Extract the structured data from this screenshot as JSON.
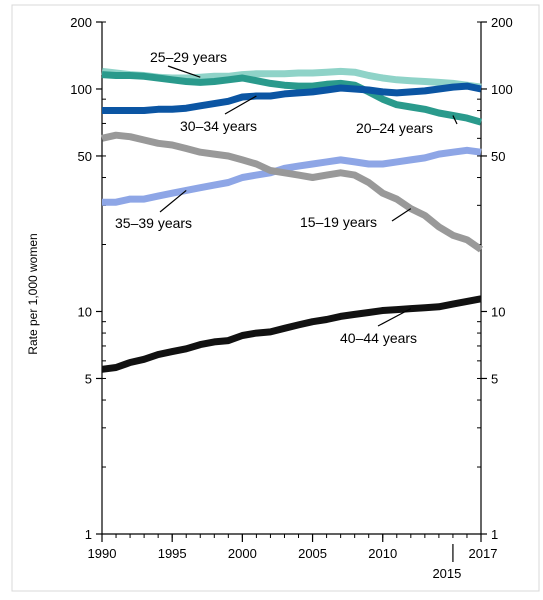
{
  "chart_data": {
    "type": "line",
    "title": "",
    "ylabel": "Rate per 1,000 women",
    "xlabel": "",
    "yscale": "log",
    "ylim": [
      1,
      200
    ],
    "xlim": [
      1990,
      2017
    ],
    "x_ticks": [
      {
        "value": 1990,
        "label": "1990"
      },
      {
        "value": 1995,
        "label": "1995"
      },
      {
        "value": 2000,
        "label": "2000"
      },
      {
        "value": 2005,
        "label": "2005"
      },
      {
        "value": 2010,
        "label": "2010"
      },
      {
        "value": 2017,
        "label": "2017"
      }
    ],
    "x_extra_label": {
      "value": 2015,
      "label": "2015"
    },
    "y_ticks": [
      {
        "value": 200,
        "label": "200"
      },
      {
        "value": 100,
        "label": "100"
      },
      {
        "value": 50,
        "label": "50"
      },
      {
        "value": 10,
        "label": "10"
      },
      {
        "value": 5,
        "label": "5"
      },
      {
        "value": 1,
        "label": "1"
      }
    ],
    "grid": false,
    "x": [
      1990,
      1991,
      1992,
      1993,
      1994,
      1995,
      1996,
      1997,
      1998,
      1999,
      2000,
      2001,
      2002,
      2003,
      2004,
      2005,
      2006,
      2007,
      2008,
      2009,
      2010,
      2011,
      2012,
      2013,
      2014,
      2015,
      2016,
      2017
    ],
    "series": [
      {
        "name": "25–29 years",
        "color": "#8fd3c8",
        "values": [
          120,
          118,
          116,
          115,
          113,
          112,
          112,
          113,
          114,
          114,
          116,
          117,
          117,
          117,
          118,
          118,
          119,
          120,
          119,
          115,
          112,
          110,
          109,
          108,
          107,
          106,
          104,
          102
        ]
      },
      {
        "name": "20–24 years",
        "color": "#2a9a8c",
        "values": [
          116,
          115,
          115,
          114,
          112,
          110,
          108,
          107,
          108,
          110,
          112,
          109,
          106,
          104,
          103,
          103,
          105,
          106,
          104,
          97,
          90,
          85,
          83,
          81,
          78,
          76,
          74,
          71
        ]
      },
      {
        "name": "30–34 years",
        "color": "#0b55a3",
        "values": [
          80,
          80,
          80,
          80,
          81,
          81,
          82,
          84,
          86,
          88,
          92,
          93,
          93,
          95,
          96,
          97,
          99,
          101,
          100,
          99,
          97,
          96,
          97,
          98,
          100,
          102,
          103,
          100
        ]
      },
      {
        "name": "35–39 years",
        "color": "#8ea6e6",
        "values": [
          31,
          31,
          32,
          32,
          33,
          34,
          35,
          36,
          37,
          38,
          40,
          41,
          42,
          44,
          45,
          46,
          47,
          48,
          47,
          46,
          46,
          47,
          48,
          49,
          51,
          52,
          53,
          52
        ]
      },
      {
        "name": "15–19 years",
        "color": "#999999",
        "values": [
          60,
          62,
          61,
          59,
          57,
          56,
          54,
          52,
          51,
          50,
          48,
          46,
          43,
          42,
          41,
          40,
          41,
          42,
          41,
          38,
          34,
          32,
          29,
          27,
          24,
          22,
          21,
          19
        ]
      },
      {
        "name": "40–44 years",
        "color": "#111111",
        "values": [
          5.5,
          5.6,
          5.9,
          6.1,
          6.4,
          6.6,
          6.8,
          7.1,
          7.3,
          7.4,
          7.8,
          8.0,
          8.1,
          8.4,
          8.7,
          9.0,
          9.2,
          9.5,
          9.7,
          9.9,
          10.1,
          10.2,
          10.3,
          10.4,
          10.5,
          10.8,
          11.1,
          11.4
        ]
      }
    ],
    "annotations": [
      {
        "text": "25–29 years",
        "series": "25–29 years"
      },
      {
        "text": "30–34 years",
        "series": "30–34 years"
      },
      {
        "text": "20–24 years",
        "series": "20–24 years"
      },
      {
        "text": "35–39 years",
        "series": "35–39 years"
      },
      {
        "text": "15–19 years",
        "series": "15–19 years"
      },
      {
        "text": "40–44 years",
        "series": "40–44 years"
      }
    ]
  }
}
